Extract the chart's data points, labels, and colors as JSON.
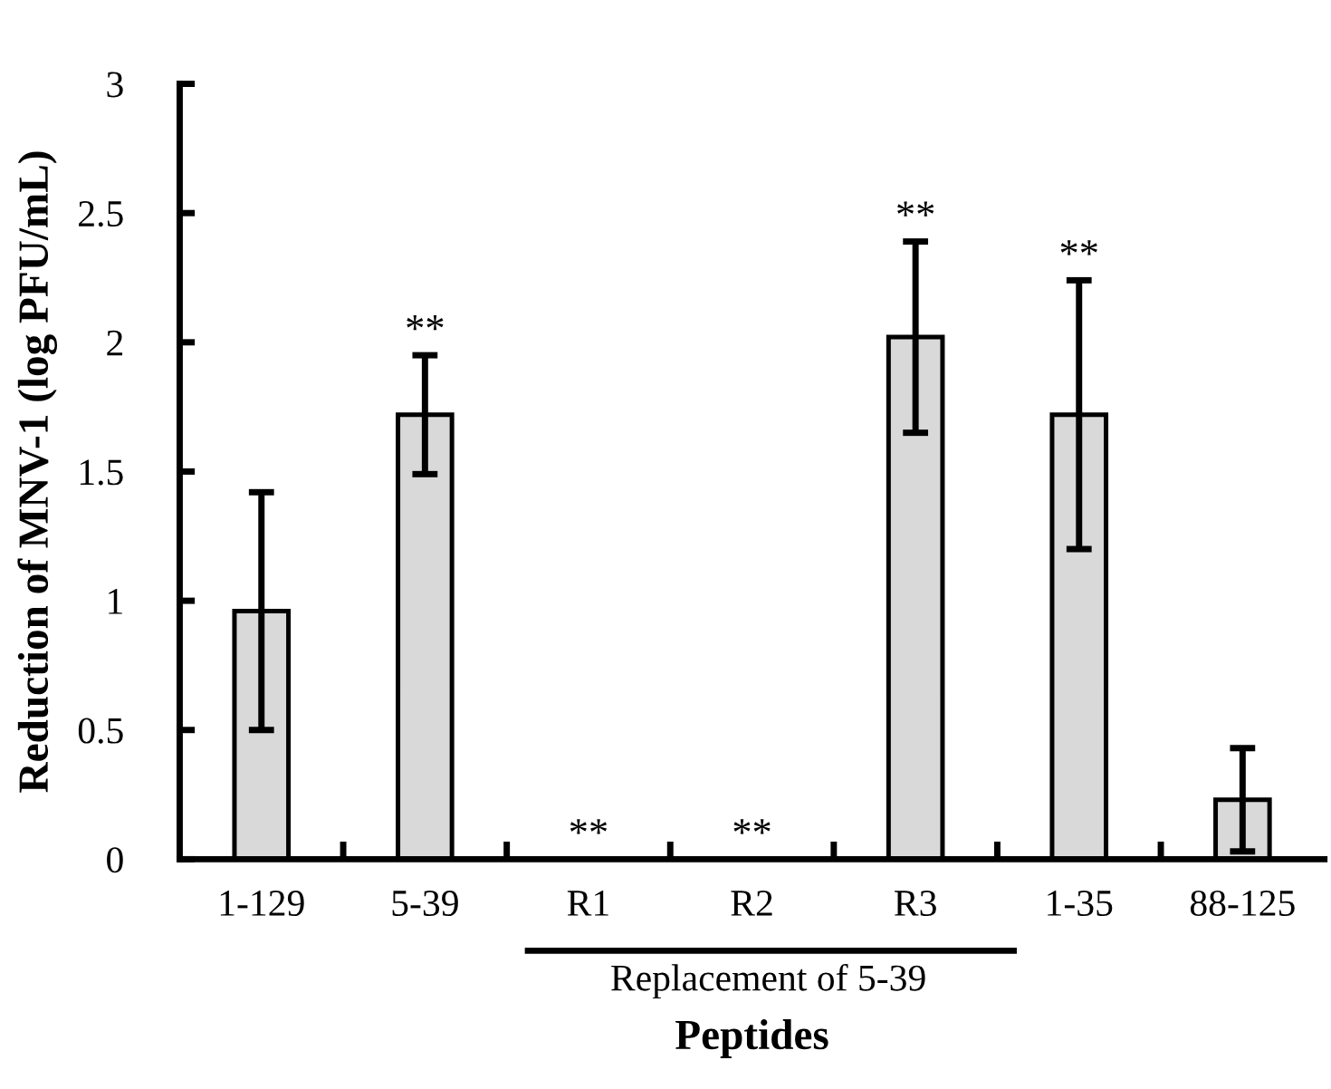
{
  "chart_data": {
    "type": "bar",
    "xlabel": "Peptides",
    "ylabel": "Reduction of MNV-1 (log PFU/mL)",
    "categories": [
      "1-129",
      "5-39",
      "R1",
      "R2",
      "R3",
      "1-35",
      "88-125"
    ],
    "values": [
      0.96,
      1.72,
      0,
      0,
      2.02,
      1.72,
      0.23
    ],
    "errors": [
      0.46,
      0.23,
      null,
      null,
      0.37,
      0.52,
      0.2
    ],
    "color": "#d9d9d9",
    "ylim": [
      0,
      3
    ],
    "yticks": [
      0,
      0.5,
      1,
      1.5,
      2,
      2.5,
      3
    ],
    "grid": false,
    "legend": false,
    "annotations": [
      {
        "text": "**",
        "x": "5-39",
        "y": 1.95
      },
      {
        "text": "**",
        "x": "R1",
        "y": 0
      },
      {
        "text": "**",
        "x": "R2",
        "y": 0
      },
      {
        "text": "**",
        "x": "R3",
        "y": 2.39
      },
      {
        "text": "**",
        "x": "1-35",
        "y": 2.24
      },
      "Replacement of 5-39"
    ]
  }
}
